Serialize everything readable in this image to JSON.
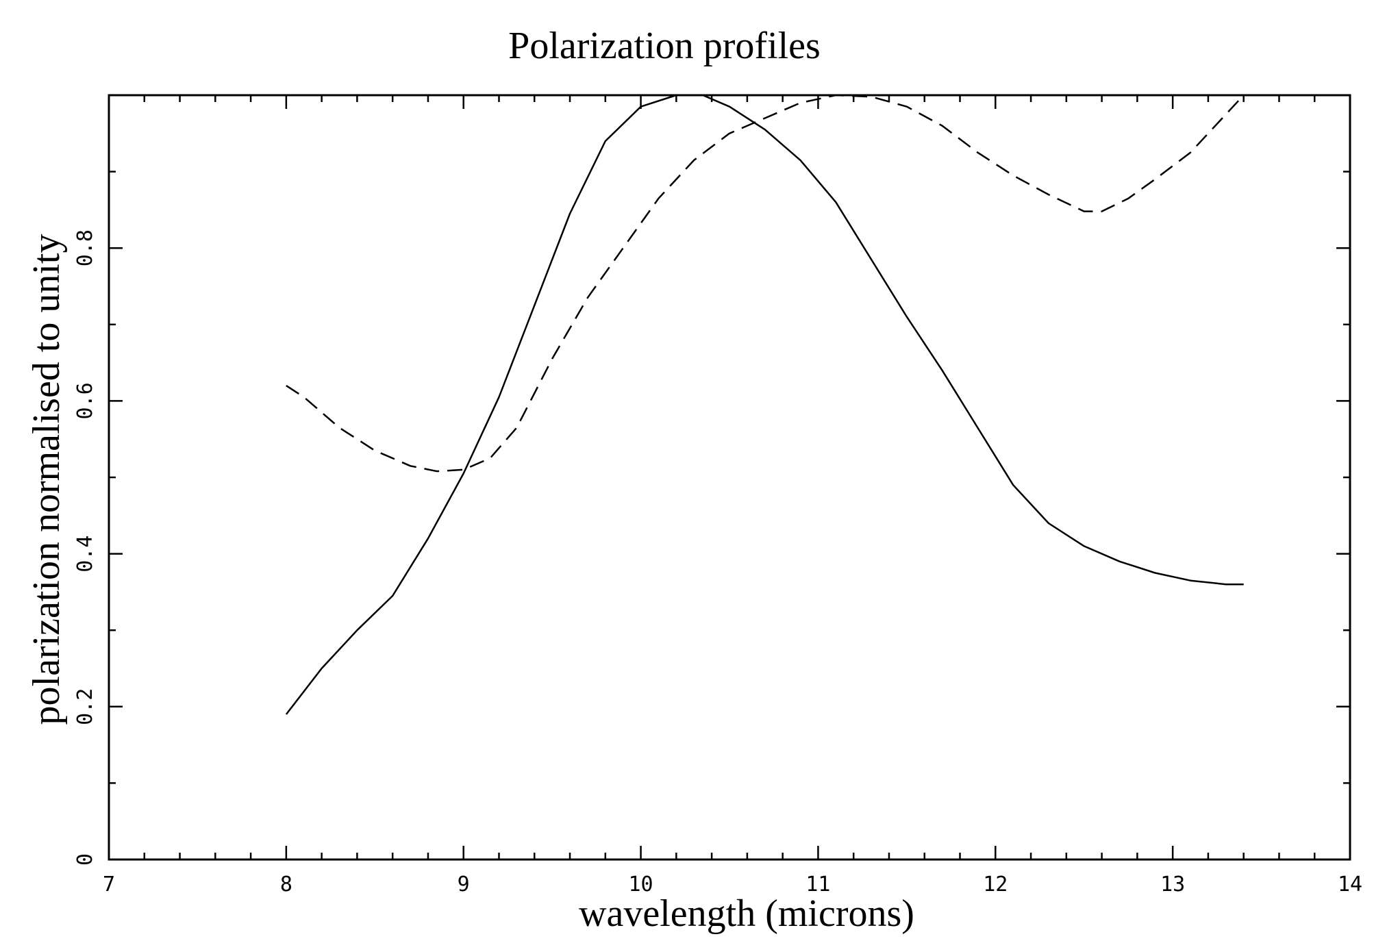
{
  "chart_data": {
    "type": "line",
    "title": "Polarization profiles",
    "xlabel": "wavelength (microns)",
    "ylabel": "polarization normalised to unity",
    "xlim": [
      7,
      14
    ],
    "ylim": [
      0,
      1
    ],
    "x_ticks": [
      "7",
      "8",
      "9",
      "10",
      "11",
      "12",
      "13",
      "14"
    ],
    "y_ticks": [
      "0",
      "0.2",
      "0.4",
      "0.6",
      "0.8"
    ],
    "y_tick_values": [
      0,
      0.2,
      0.4,
      0.6,
      0.8
    ],
    "grid": false,
    "legend": "none",
    "series": [
      {
        "style": "solid",
        "x": [
          8.0,
          8.2,
          8.4,
          8.6,
          8.8,
          9.0,
          9.2,
          9.4,
          9.6,
          9.8,
          10.0,
          10.2,
          10.35,
          10.5,
          10.7,
          10.9,
          11.1,
          11.3,
          11.5,
          11.7,
          11.9,
          12.1,
          12.3,
          12.5,
          12.7,
          12.9,
          13.1,
          13.3,
          13.4
        ],
        "y": [
          0.19,
          0.25,
          0.3,
          0.345,
          0.42,
          0.505,
          0.605,
          0.725,
          0.845,
          0.94,
          0.985,
          1.0,
          1.0,
          0.985,
          0.955,
          0.915,
          0.86,
          0.785,
          0.71,
          0.64,
          0.565,
          0.49,
          0.44,
          0.41,
          0.39,
          0.375,
          0.365,
          0.36,
          0.36
        ]
      },
      {
        "style": "dashed",
        "x": [
          8.0,
          8.1,
          8.3,
          8.5,
          8.7,
          8.85,
          9.0,
          9.15,
          9.3,
          9.5,
          9.7,
          9.9,
          10.1,
          10.3,
          10.5,
          10.7,
          10.9,
          11.1,
          11.3,
          11.5,
          11.7,
          11.9,
          12.1,
          12.3,
          12.5,
          12.6,
          12.75,
          12.9,
          13.1,
          13.3,
          13.4
        ],
        "y": [
          0.62,
          0.605,
          0.565,
          0.535,
          0.515,
          0.508,
          0.51,
          0.525,
          0.565,
          0.655,
          0.735,
          0.8,
          0.865,
          0.915,
          0.95,
          0.97,
          0.99,
          1.0,
          0.998,
          0.985,
          0.96,
          0.925,
          0.895,
          0.87,
          0.848,
          0.848,
          0.865,
          0.89,
          0.925,
          0.975,
          1.0
        ]
      }
    ]
  }
}
